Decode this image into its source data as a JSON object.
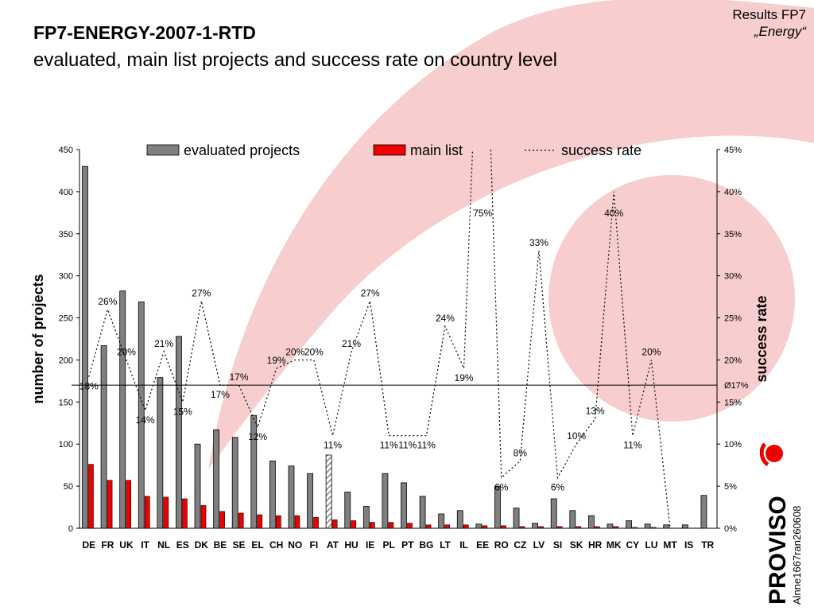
{
  "header": {
    "title": "FP7-ENERGY-2007-1-RTD",
    "subtitle": "evaluated, main list projects and success rate on country level",
    "corner_line1": "Results FP7",
    "corner_line2": "„Energy“"
  },
  "footer": {
    "logo_text": "PROVISO",
    "reference": "Alnne1667ran260608"
  },
  "colors": {
    "background_shape": "#f8cdcd",
    "evaluated_bar": "#808080",
    "main_list_bar": "#ee0000",
    "success_line": "#000000"
  },
  "chart_data": {
    "type": "bar",
    "categories": [
      "DE",
      "FR",
      "UK",
      "IT",
      "NL",
      "ES",
      "DK",
      "BE",
      "SE",
      "EL",
      "CH",
      "NO",
      "FI",
      "AT",
      "HU",
      "IE",
      "PL",
      "PT",
      "BG",
      "LT",
      "IL",
      "EE",
      "RO",
      "CZ",
      "LV",
      "SI",
      "SK",
      "HR",
      "MK",
      "CY",
      "LU",
      "MT",
      "IS",
      "TR"
    ],
    "series": [
      {
        "name": "evaluated projects",
        "type": "bar",
        "axis": "left",
        "values": [
          430,
          217,
          282,
          269,
          179,
          228,
          100,
          117,
          108,
          134,
          80,
          74,
          65,
          87,
          43,
          26,
          65,
          54,
          38,
          17,
          21,
          5,
          50,
          24,
          6,
          35,
          21,
          15,
          5,
          9,
          5,
          4,
          4,
          39
        ]
      },
      {
        "name": "main list",
        "type": "bar",
        "axis": "left",
        "values": [
          76,
          57,
          57,
          38,
          37,
          35,
          27,
          20,
          18,
          16,
          15,
          15,
          13,
          10,
          9,
          7,
          7,
          6,
          4,
          4,
          4,
          3,
          3,
          2,
          2,
          2,
          2,
          2,
          2,
          1,
          1,
          0,
          0,
          0
        ]
      },
      {
        "name": "success rate",
        "type": "line",
        "axis": "right",
        "style": "dotted",
        "values": [
          18,
          26,
          20,
          14,
          21,
          15,
          27,
          17,
          17,
          12,
          19,
          20,
          20,
          11,
          21,
          27,
          11,
          11,
          11,
          24,
          19,
          75,
          6,
          8,
          33,
          6,
          10,
          13,
          40,
          11,
          20,
          0,
          0,
          0
        ]
      }
    ],
    "point_labels": [
      "18%",
      "26%",
      "20%",
      "14%",
      "21%",
      "15%",
      "27%",
      "17%",
      "17%",
      "12%",
      "19%",
      "20%",
      "20%",
      "11%",
      "21%",
      "27%",
      "11%",
      "11%",
      "11%",
      "24%",
      "19%",
      "75%",
      "6%",
      "8%",
      "33%",
      "6%",
      "10%",
      "13%",
      "40%",
      "11%",
      "20%",
      "",
      "",
      ""
    ],
    "average_rate": 17,
    "average_label": "Ø17%",
    "ylabel": "number of projects",
    "ylabel_right": "success rate",
    "ylim": [
      0,
      450
    ],
    "y_ticks": [
      "0",
      "50",
      "100",
      "150",
      "200",
      "250",
      "300",
      "350",
      "400",
      "450"
    ],
    "ylim_right": [
      0,
      45
    ],
    "y_ticks_right": [
      "0%",
      "5%",
      "10%",
      "15%",
      "20%",
      "25%",
      "30%",
      "35%",
      "40%",
      "45%"
    ],
    "legend": [
      "evaluated projects",
      "main list",
      "success rate"
    ],
    "legend_position": "top",
    "grid": false
  }
}
